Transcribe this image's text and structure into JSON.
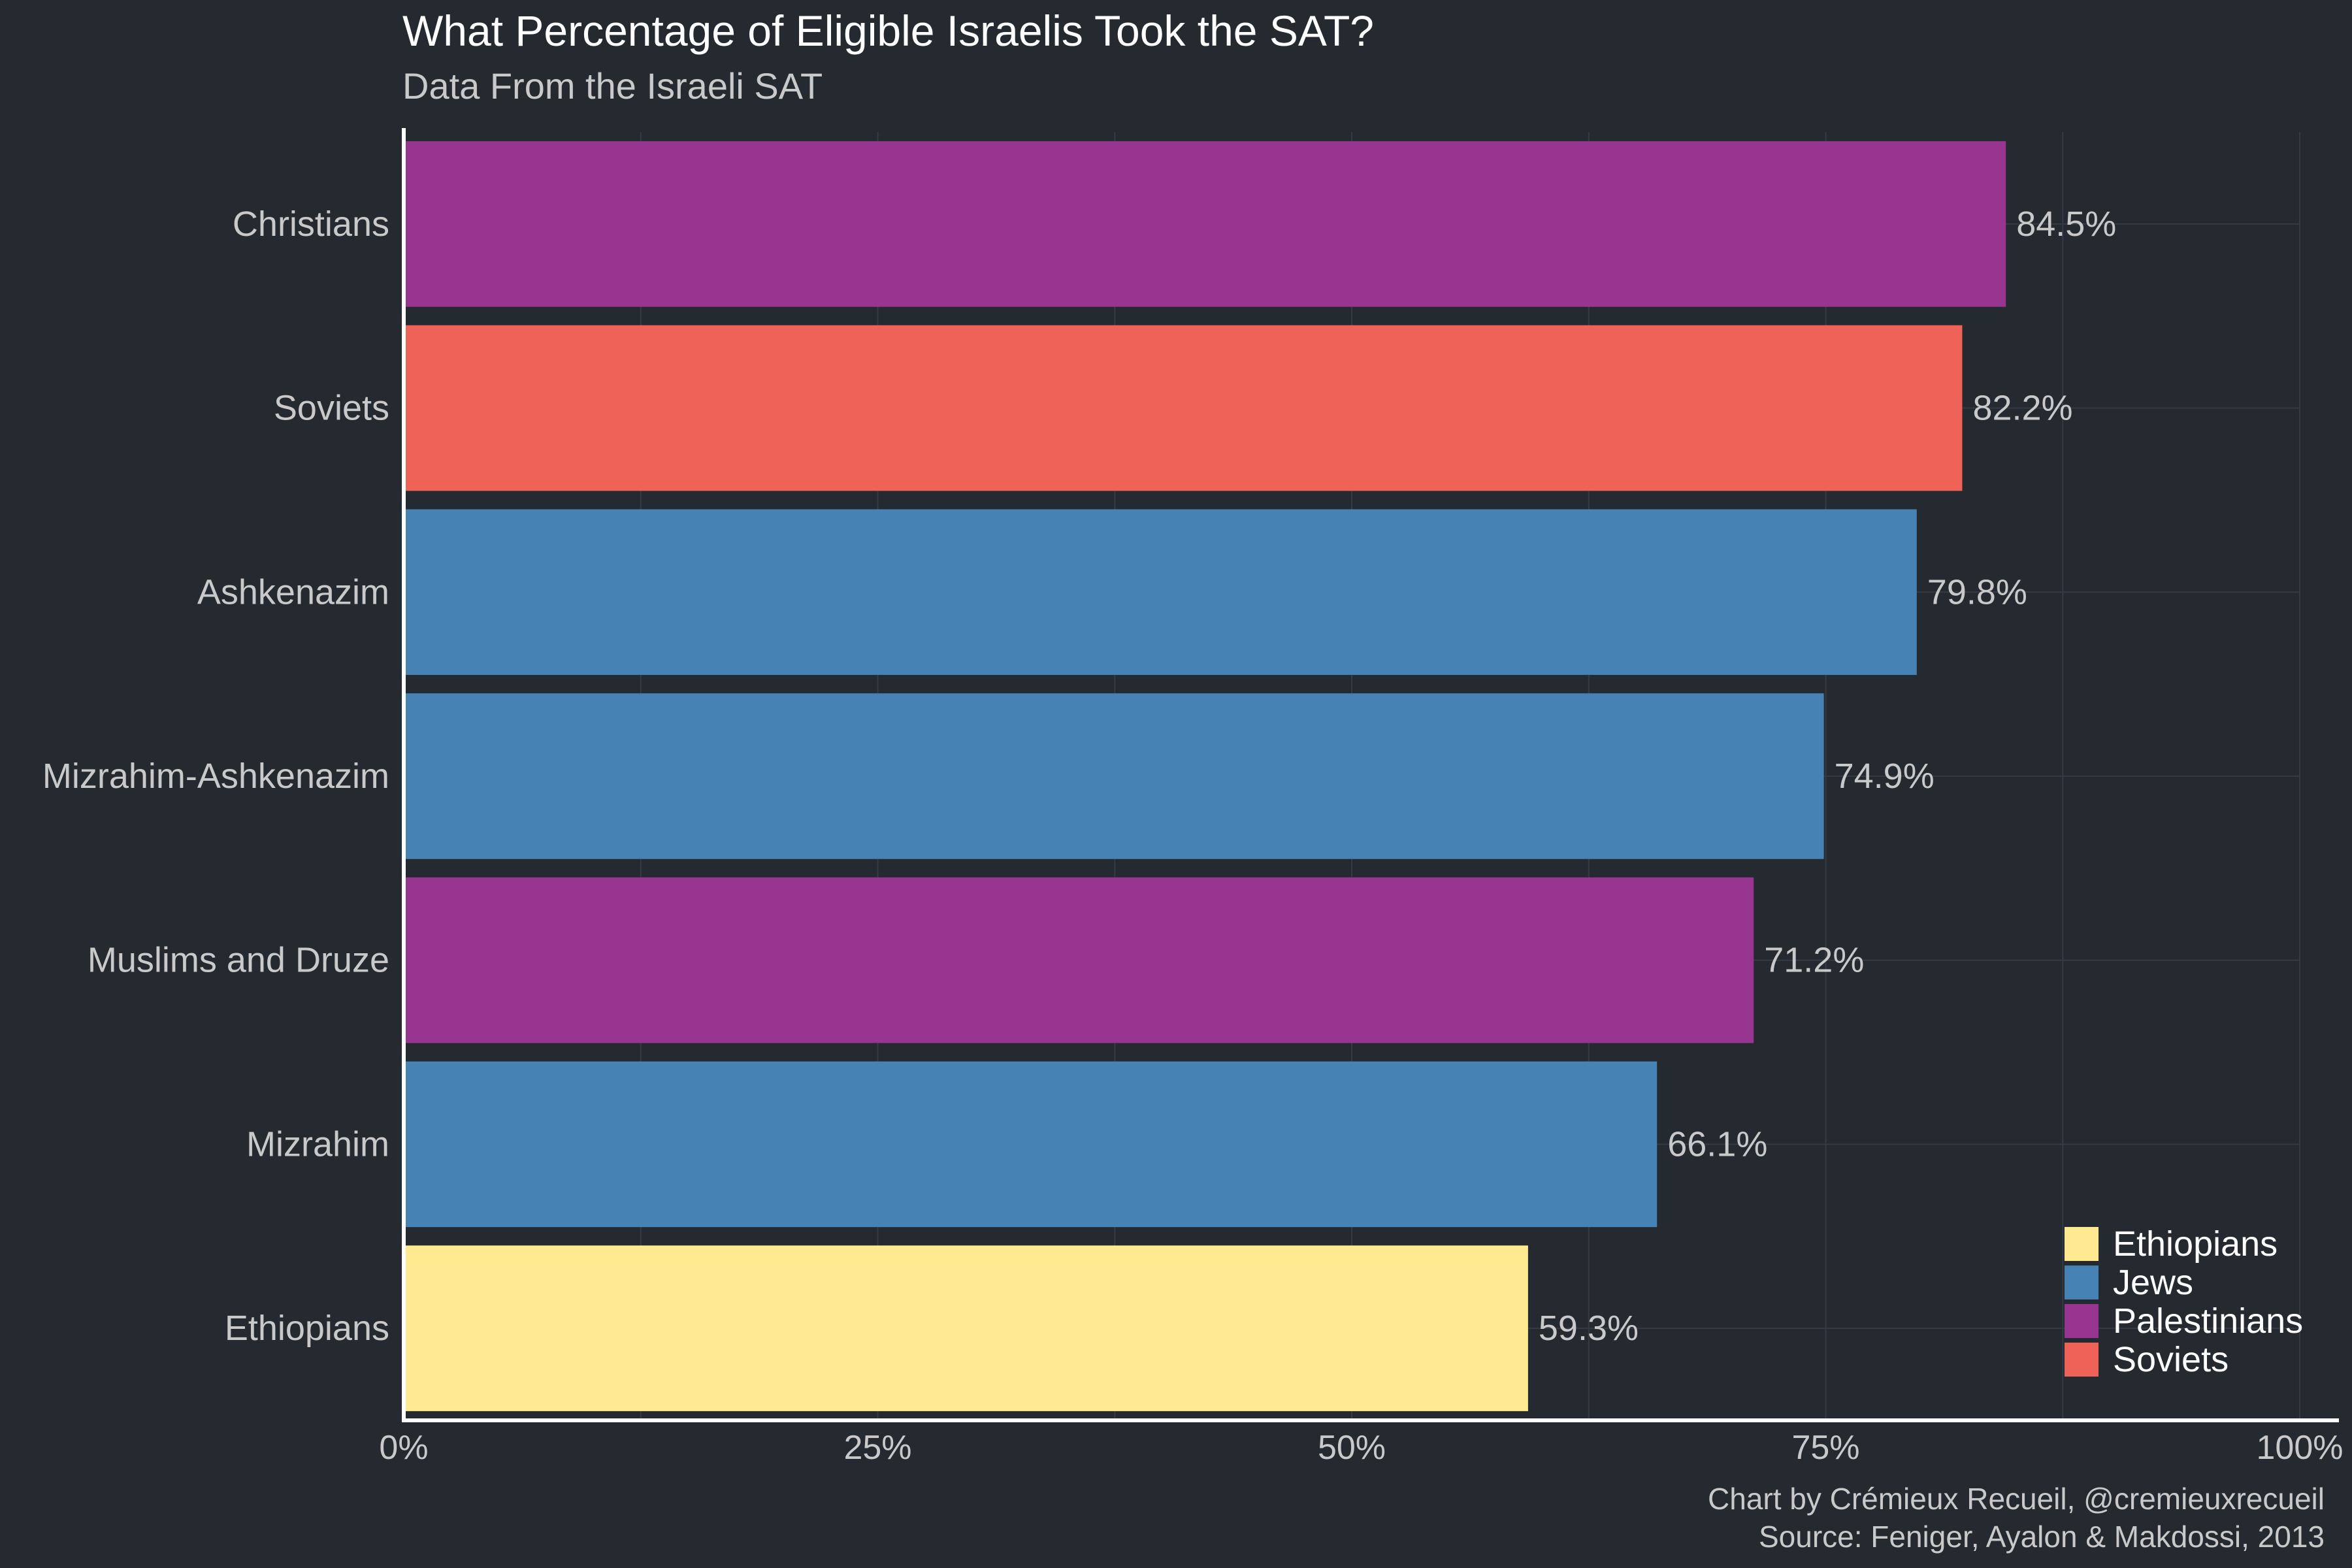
{
  "chart_data": {
    "type": "bar",
    "orientation": "horizontal",
    "title": "What Percentage of Eligible Israelis Took the SAT?",
    "subtitle": "Data From the Israeli SAT",
    "caption_lines": [
      "Chart by Crémieux Recueil, @cremieuxrecueil",
      "Source: Feniger, Ayalon & Makdossi, 2013"
    ],
    "categories": [
      "Christians",
      "Soviets",
      "Ashkenazim",
      "Mizrahim-Ashkenazim",
      "Muslims and Druze",
      "Mizrahim",
      "Ethiopians"
    ],
    "values": [
      84.5,
      82.2,
      79.8,
      74.9,
      71.2,
      66.1,
      59.3
    ],
    "value_labels": [
      "84.5%",
      "82.2%",
      "79.8%",
      "74.9%",
      "71.2%",
      "66.1%",
      "59.3%"
    ],
    "groups": [
      "Palestinians",
      "Soviets",
      "Jews",
      "Jews",
      "Palestinians",
      "Jews",
      "Ethiopians"
    ],
    "xlim": [
      0,
      100
    ],
    "x_ticks": [
      0,
      25,
      50,
      75,
      100
    ],
    "x_tick_labels": [
      "0%",
      "25%",
      "50%",
      "75%",
      "100%"
    ],
    "legend": [
      {
        "name": "Ethiopians",
        "color": "#ffea91"
      },
      {
        "name": "Jews",
        "color": "#4682b4"
      },
      {
        "name": "Palestinians",
        "color": "#983590"
      },
      {
        "name": "Soviets",
        "color": "#ee6257"
      }
    ],
    "legend_position": "bottom-right",
    "grid": true,
    "colors": {
      "background": "#252a31",
      "grid": "#353b44",
      "axis": "#ffffff",
      "text": "#c9c9c9"
    }
  }
}
